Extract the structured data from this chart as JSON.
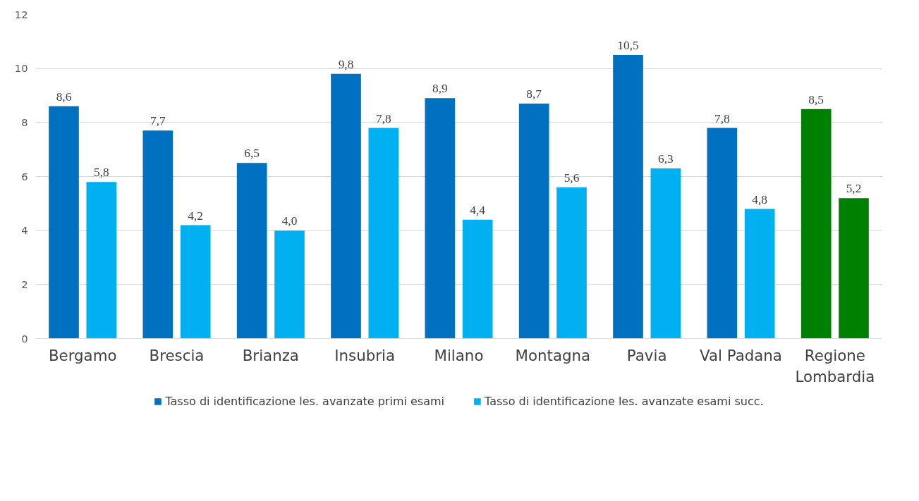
{
  "chart_data": {
    "type": "bar",
    "categories": [
      "Bergamo",
      "Brescia",
      "Brianza",
      "Insubria",
      "Milano",
      "Montagna",
      "Pavia",
      "Val Padana",
      "Regione\nLombardia"
    ],
    "series": [
      {
        "name": "Tasso di identificazione les. avanzate primi esami",
        "color": "#0070c0",
        "colors": [
          "#0070c0",
          "#0070c0",
          "#0070c0",
          "#0070c0",
          "#0070c0",
          "#0070c0",
          "#0070c0",
          "#0070c0",
          "#008000"
        ],
        "values": [
          8.6,
          7.7,
          6.5,
          9.8,
          8.9,
          8.7,
          10.5,
          7.8,
          8.5
        ],
        "value_labels": [
          "8,6",
          "7,7",
          "6,5",
          "9,8",
          "8,9",
          "8,7",
          "10,5",
          "7,8",
          "8,5"
        ]
      },
      {
        "name": "Tasso di identificazione les. avanzate esami succ.",
        "color": "#00b0f0",
        "colors": [
          "#00b0f0",
          "#00b0f0",
          "#00b0f0",
          "#00b0f0",
          "#00b0f0",
          "#00b0f0",
          "#00b0f0",
          "#00b0f0",
          "#008000"
        ],
        "values": [
          5.8,
          4.2,
          4.0,
          7.8,
          4.4,
          5.6,
          6.3,
          4.8,
          5.2
        ],
        "value_labels": [
          "5,8",
          "4,2",
          "4,0",
          "7,8",
          "4,4",
          "5,6",
          "6,3",
          "4,8",
          "5,2"
        ]
      }
    ],
    "ylim": [
      0,
      12
    ],
    "yticks": [
      0,
      2,
      4,
      6,
      8,
      10,
      12
    ],
    "grid": "y",
    "legend": "bottom"
  }
}
